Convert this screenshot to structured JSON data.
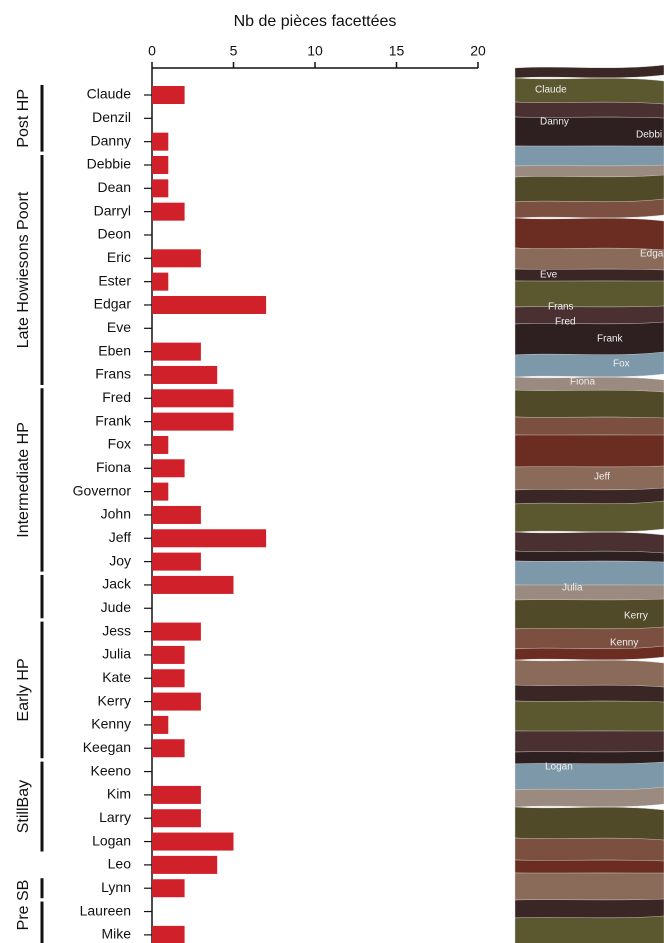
{
  "chart_data": {
    "type": "bar",
    "orientation": "horizontal",
    "title": "Nb de pièces facettées",
    "categories": [
      "Claude",
      "Denzil",
      "Danny",
      "Debbie",
      "Dean",
      "Darryl",
      "Deon",
      "Eric",
      "Ester",
      "Edgar",
      "Eve",
      "Eben",
      "Frans",
      "Fred",
      "Frank",
      "Fox",
      "Fiona",
      "Governor",
      "John",
      "Jeff",
      "Joy",
      "Jack",
      "Jude",
      "Jess",
      "Julia",
      "Kate",
      "Kerry",
      "Kenny",
      "Keegan",
      "Keeno",
      "Kim",
      "Larry",
      "Logan",
      "Leo",
      "Lynn",
      "Laureen",
      "Mike"
    ],
    "values": [
      2,
      0,
      1,
      1,
      1,
      2,
      0,
      3,
      1,
      7,
      0,
      3,
      4,
      5,
      5,
      1,
      2,
      1,
      3,
      7,
      3,
      5,
      0,
      3,
      2,
      2,
      3,
      1,
      2,
      0,
      3,
      3,
      5,
      4,
      2,
      0,
      2
    ],
    "color": "#d0202a",
    "xlim": [
      0,
      20
    ],
    "xticks": [
      0,
      5,
      10,
      15,
      20
    ],
    "group_labels": [
      "Post HP",
      "Late Howiesons Poort",
      "Intermediate HP",
      "Early HP",
      "StillBay",
      "Pre SB"
    ],
    "section_labels": [
      "Claude",
      "Danny",
      "Debbi",
      "Edgar",
      "Eve",
      "Frans",
      "Fred",
      "Frank",
      "Fox",
      "Fiona",
      "Jeff",
      "Julia",
      "Kerry",
      "Kenny",
      "Logan"
    ]
  }
}
